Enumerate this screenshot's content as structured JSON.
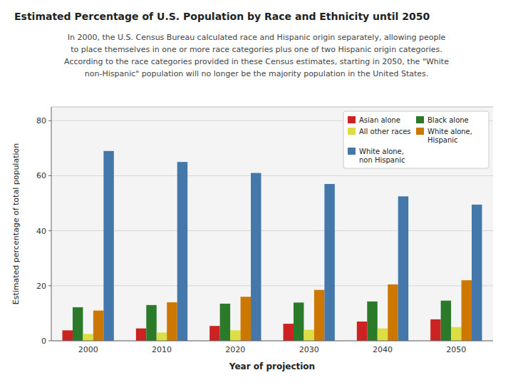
{
  "chart_data": {
    "type": "bar",
    "title": "Estimated Percentage of U.S. Population by Race and Ethnicity until 2050",
    "annotations": [
      "In 2000, the U.S. Census Bureau calculated race and Hispanic origin separately, allowing people",
      "to place themselves in one or more race categories plus one of two Hispanic origin categories.",
      "According to the race categories provided in these Census estimates, starting in 2050, the \"White",
      "non-Hispanic\" population will no longer be the majority population in the United States."
    ],
    "x_label": "Year of projection",
    "y_label": "Estimated percentage of total population",
    "categories": [
      "2000",
      "2010",
      "2020",
      "2030",
      "2040",
      "2050"
    ],
    "series": [
      {
        "name": "Asian alone",
        "color": "#cc2222",
        "values": [
          3.8,
          4.5,
          5.4,
          6.2,
          7.0,
          7.8
        ]
      },
      {
        "name": "Black alone",
        "color": "#2a7a2a",
        "values": [
          12.2,
          13.0,
          13.5,
          13.9,
          14.3,
          14.6
        ]
      },
      {
        "name": "All other races",
        "color": "#dddd44",
        "values": [
          2.5,
          3.0,
          3.8,
          4.0,
          4.5,
          5.0
        ]
      },
      {
        "name": "White alone,\nHispanic",
        "color": "#cc7700",
        "values": [
          11.0,
          14.0,
          16.0,
          18.5,
          20.5,
          22.0
        ]
      },
      {
        "name": "White alone,\nnon Hispanic",
        "color": "#4477aa",
        "values": [
          69.0,
          65.0,
          61.0,
          57.0,
          52.5,
          49.5
        ]
      }
    ],
    "ylim": [
      0,
      85
    ],
    "yticks": [
      0,
      20,
      40,
      60,
      80
    ],
    "grid": true,
    "legend": "upper right"
  }
}
